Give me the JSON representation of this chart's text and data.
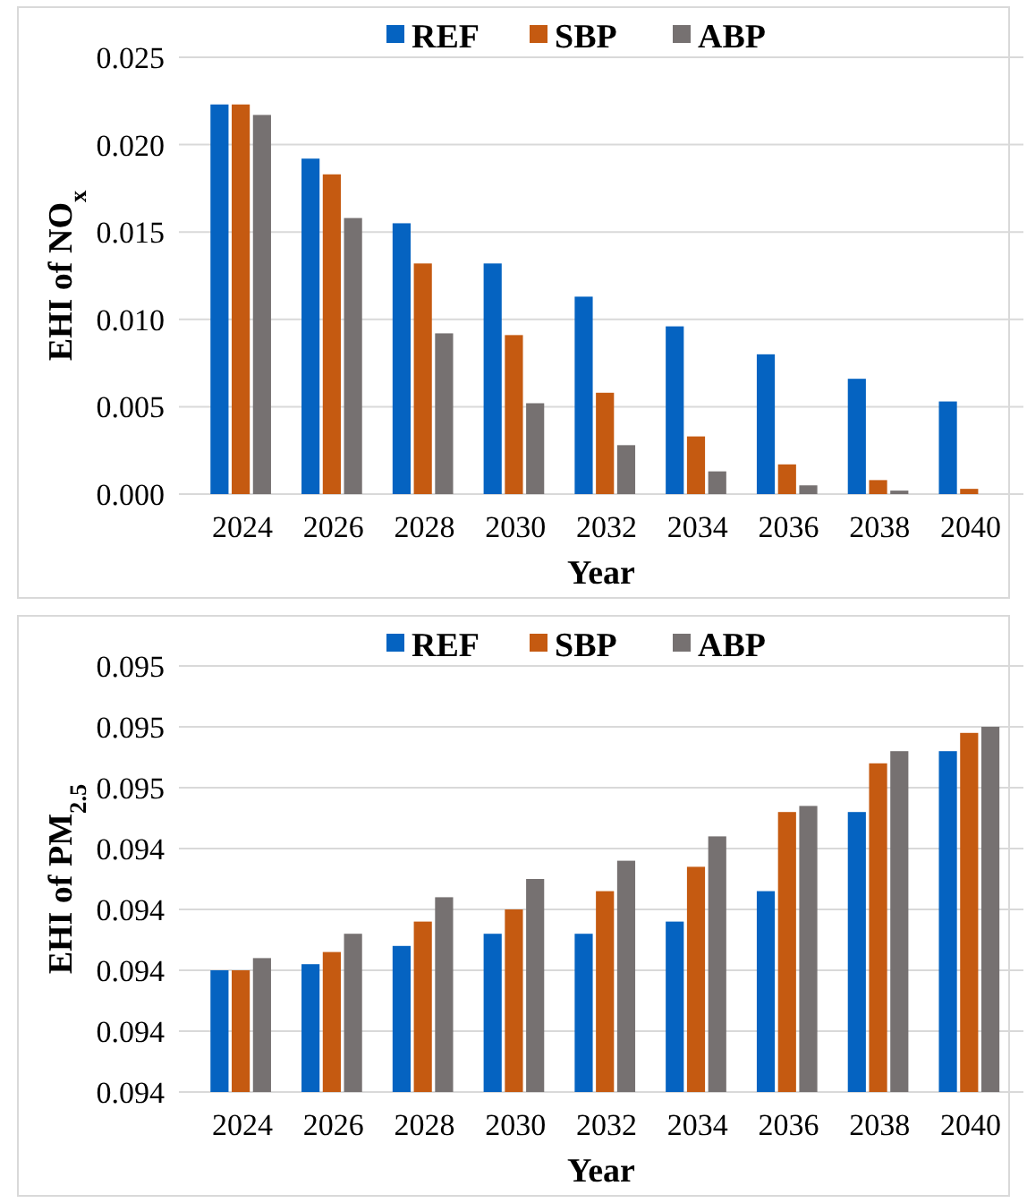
{
  "chart_data": [
    {
      "type": "bar",
      "ylabel": "EHI of NO$_{x}$",
      "xlabel": "Year",
      "categories": [
        "2024",
        "2026",
        "2028",
        "2030",
        "2032",
        "2034",
        "2036",
        "2038",
        "2040"
      ],
      "series": [
        {
          "name": "REF",
          "color": "#0563c1",
          "values": [
            0.0223,
            0.0192,
            0.0155,
            0.0132,
            0.0113,
            0.0096,
            0.008,
            0.0066,
            0.0053
          ]
        },
        {
          "name": "SBP",
          "color": "#c55a11",
          "values": [
            0.0223,
            0.0183,
            0.0132,
            0.0091,
            0.0058,
            0.0033,
            0.0017,
            0.0008,
            0.0003
          ]
        },
        {
          "name": "ABP",
          "color": "#767171",
          "values": [
            0.0217,
            0.0158,
            0.0092,
            0.0052,
            0.0028,
            0.0013,
            0.0005,
            0.0002,
            0
          ]
        }
      ],
      "ylim": [
        0,
        0.025
      ],
      "yticks": [
        {
          "value": 0,
          "label": "0.000"
        },
        {
          "value": 0.005,
          "label": "0.005"
        },
        {
          "value": 0.01,
          "label": "0.010"
        },
        {
          "value": 0.015,
          "label": "0.015"
        },
        {
          "value": 0.02,
          "label": "0.020"
        },
        {
          "value": 0.025,
          "label": "0.025"
        }
      ],
      "grid": "y",
      "legend": "top"
    },
    {
      "type": "bar",
      "ylabel": "EHI of PM$_{2.5}$",
      "xlabel": "Year",
      "categories": [
        "2024",
        "2026",
        "2028",
        "2030",
        "2032",
        "2034",
        "2036",
        "2038",
        "2040"
      ],
      "series": [
        {
          "name": "REF",
          "color": "#0563c1",
          "values": [
            0.0942,
            0.09421,
            0.09424,
            0.09426,
            0.09426,
            0.09428,
            0.09433,
            0.09446,
            0.09456
          ]
        },
        {
          "name": "SBP",
          "color": "#c55a11",
          "values": [
            0.0942,
            0.09423,
            0.09428,
            0.0943,
            0.09433,
            0.09437,
            0.09446,
            0.09454,
            0.09459
          ]
        },
        {
          "name": "ABP",
          "color": "#767171",
          "values": [
            0.09422,
            0.09426,
            0.09432,
            0.09435,
            0.09438,
            0.09442,
            0.09447,
            0.09456,
            0.0946
          ]
        }
      ],
      "ylim": [
        0.094,
        0.0947
      ],
      "yticks": [
        {
          "value": 0.094,
          "label": "0.094"
        },
        {
          "value": 0.0941,
          "label": "0.094"
        },
        {
          "value": 0.0942,
          "label": "0.094"
        },
        {
          "value": 0.0943,
          "label": "0.094"
        },
        {
          "value": 0.0944,
          "label": "0.094"
        },
        {
          "value": 0.0945,
          "label": "0.095"
        },
        {
          "value": 0.0946,
          "label": "0.095"
        },
        {
          "value": 0.0947,
          "label": "0.095"
        }
      ],
      "grid": "y",
      "legend": "top"
    }
  ]
}
